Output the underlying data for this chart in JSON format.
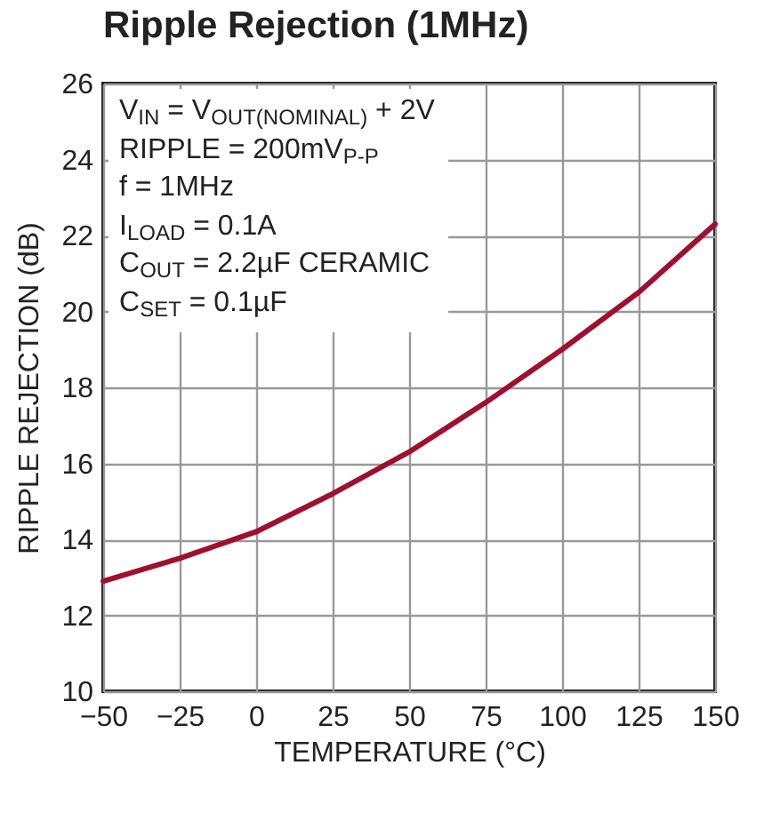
{
  "chart_data": {
    "type": "line",
    "title": "Ripple Rejection (1MHz)",
    "xlabel": "TEMPERATURE (°C)",
    "ylabel": "RIPPLE REJECTION (dB)",
    "x": [
      -50,
      -25,
      0,
      25,
      50,
      75,
      100,
      125,
      150
    ],
    "series": [
      {
        "color": "#a0102e",
        "values": [
          12.9,
          13.5,
          14.2,
          15.2,
          16.3,
          17.6,
          19.0,
          20.5,
          22.3
        ]
      }
    ],
    "xlim": [
      -50,
      150
    ],
    "xticks": [
      -50,
      -25,
      0,
      25,
      50,
      75,
      100,
      125,
      150
    ],
    "ylim": [
      10,
      26
    ],
    "yticks": [
      10,
      12,
      14,
      16,
      18,
      20,
      22,
      24,
      26
    ],
    "grid": true,
    "line_style": "solid",
    "annotations": [
      "V$_{IN}$ = V$_{OUT(NOMINAL)}$ + 2V",
      "RIPPLE = 200mV$_{P-P}$",
      "f = 1MHz",
      "I$_{LOAD}$ = 0.1A",
      "C$_{OUT}$ = 2.2µF CERAMIC",
      "C$_{SET}$ = 0.1µF"
    ]
  }
}
